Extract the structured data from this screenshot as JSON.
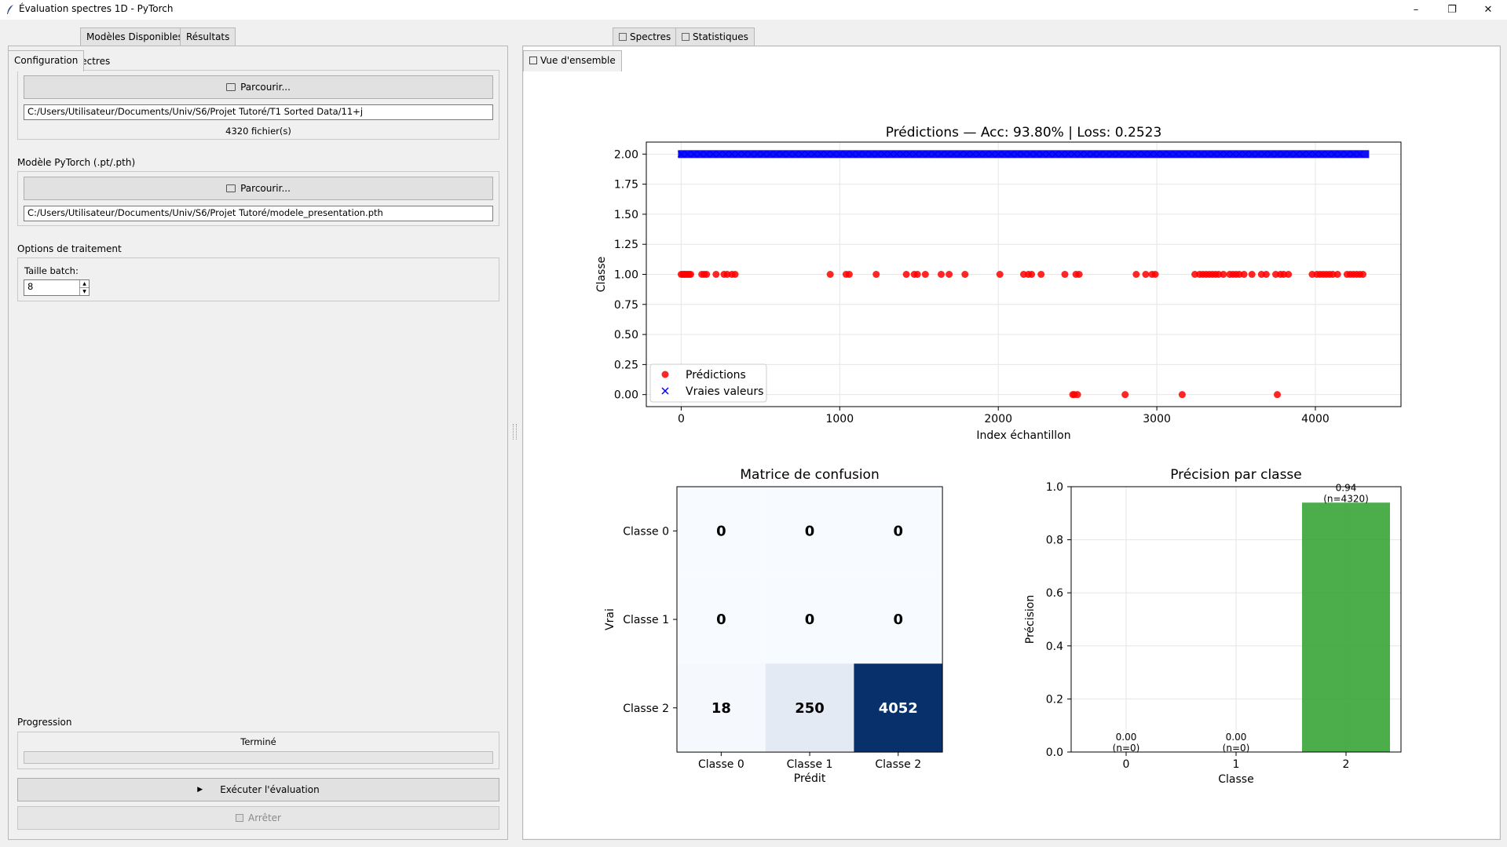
{
  "window": {
    "title": "Évaluation spectres 1D - PyTorch",
    "controls": [
      "–",
      "❐",
      "✕"
    ]
  },
  "left_tabs": [
    "Configuration",
    "Modèles Disponibles",
    "Résultats"
  ],
  "right_tabs": [
    "Vue d'ensemble",
    "Spectres",
    "Statistiques"
  ],
  "config": {
    "spectra_group": "Dossier de spectres",
    "spectra_browse": "Parcourir...",
    "spectra_path": "C:/Users/Utilisateur/Documents/Univ/S6/Projet Tutoré/T1 Sorted Data/11+j",
    "file_count": "4320 fichier(s)",
    "model_group": "Modèle PyTorch (.pt/.pth)",
    "model_browse": "Parcourir...",
    "model_path": "C:/Users/Utilisateur/Documents/Univ/S6/Projet Tutoré/modele_presentation.pth",
    "options_group": "Options de traitement",
    "batch_label": "Taille batch:",
    "batch_value": "8",
    "progress_group": "Progression",
    "progress_status": "Terminé",
    "progress_value": 0,
    "run_button": "Exécuter l'évaluation",
    "run_icon": "▶",
    "stop_button": "Arrêter"
  },
  "chart_data": [
    {
      "type": "scatter",
      "title": "Prédictions — Acc: 93.80% | Loss: 0.2523",
      "xlabel": "Index échantillon",
      "ylabel": "Classe",
      "xlim": [
        -220,
        4540
      ],
      "ylim": [
        -0.1,
        2.1
      ],
      "xticks": [
        "0",
        "1000",
        "2000",
        "3000",
        "4000"
      ],
      "xtick_values": [
        0,
        1000,
        2000,
        3000,
        4000
      ],
      "yticks": [
        "0.00",
        "0.25",
        "0.50",
        "0.75",
        "1.00",
        "1.25",
        "1.50",
        "1.75",
        "2.00"
      ],
      "ytick_values": [
        0,
        0.25,
        0.5,
        0.75,
        1,
        1.25,
        1.5,
        1.75,
        2
      ],
      "grid": true,
      "legend_position": "lower-left",
      "series": [
        {
          "name": "Prédictions",
          "color": "#ff0000",
          "marker": "circle",
          "points": [
            [
              0,
              1
            ],
            [
              10,
              1
            ],
            [
              20,
              1
            ],
            [
              30,
              1
            ],
            [
              40,
              1
            ],
            [
              50,
              1
            ],
            [
              60,
              1
            ],
            [
              130,
              1
            ],
            [
              145,
              1
            ],
            [
              160,
              1
            ],
            [
              220,
              1
            ],
            [
              270,
              1
            ],
            [
              290,
              1
            ],
            [
              320,
              1
            ],
            [
              340,
              1
            ],
            [
              940,
              1
            ],
            [
              1040,
              1
            ],
            [
              1060,
              1
            ],
            [
              1230,
              1
            ],
            [
              1420,
              1
            ],
            [
              1470,
              1
            ],
            [
              1490,
              1
            ],
            [
              1540,
              1
            ],
            [
              1640,
              1
            ],
            [
              1690,
              1
            ],
            [
              1790,
              1
            ],
            [
              2010,
              1
            ],
            [
              2160,
              1
            ],
            [
              2190,
              1
            ],
            [
              2210,
              1
            ],
            [
              2270,
              1
            ],
            [
              2420,
              1
            ],
            [
              2490,
              1
            ],
            [
              2510,
              1
            ],
            [
              2870,
              1
            ],
            [
              2930,
              1
            ],
            [
              2970,
              1
            ],
            [
              2990,
              1
            ],
            [
              3240,
              1
            ],
            [
              3270,
              1
            ],
            [
              3290,
              1
            ],
            [
              3310,
              1
            ],
            [
              3330,
              1
            ],
            [
              3350,
              1
            ],
            [
              3370,
              1
            ],
            [
              3390,
              1
            ],
            [
              3420,
              1
            ],
            [
              3460,
              1
            ],
            [
              3480,
              1
            ],
            [
              3500,
              1
            ],
            [
              3520,
              1
            ],
            [
              3550,
              1
            ],
            [
              3600,
              1
            ],
            [
              3660,
              1
            ],
            [
              3690,
              1
            ],
            [
              3750,
              1
            ],
            [
              3780,
              1
            ],
            [
              3800,
              1
            ],
            [
              3830,
              1
            ],
            [
              3980,
              1
            ],
            [
              4010,
              1
            ],
            [
              4030,
              1
            ],
            [
              4050,
              1
            ],
            [
              4070,
              1
            ],
            [
              4090,
              1
            ],
            [
              4110,
              1
            ],
            [
              4140,
              1
            ],
            [
              4200,
              1
            ],
            [
              4220,
              1
            ],
            [
              4240,
              1
            ],
            [
              4260,
              1
            ],
            [
              4280,
              1
            ],
            [
              4300,
              1
            ],
            [
              2470,
              0
            ],
            [
              2480,
              0
            ],
            [
              2500,
              0
            ],
            [
              2800,
              0
            ],
            [
              3160,
              0
            ],
            [
              3760,
              0
            ]
          ]
        },
        {
          "name": "Vraies valeurs",
          "color": "#0000ff",
          "marker": "x",
          "x_range": [
            0,
            4319
          ],
          "y": 2
        }
      ]
    },
    {
      "type": "heatmap",
      "title": "Matrice de confusion",
      "xlabel": "Prédit",
      "ylabel": "Vrai",
      "x_categories": [
        "Classe 0",
        "Classe 1",
        "Classe 2"
      ],
      "y_categories": [
        "Classe 0",
        "Classe 1",
        "Classe 2"
      ],
      "values": [
        [
          0,
          0,
          0
        ],
        [
          0,
          0,
          0
        ],
        [
          18,
          250,
          4052
        ]
      ],
      "colormap": "Blues"
    },
    {
      "type": "bar",
      "title": "Précision par classe",
      "xlabel": "Classe",
      "ylabel": "Précision",
      "categories": [
        "0",
        "1",
        "2"
      ],
      "values": [
        0.0,
        0.0,
        0.94
      ],
      "value_labels": [
        "0.00",
        "0.00",
        "0.94"
      ],
      "count_labels": [
        "(n=0)",
        "(n=0)",
        "(n=4320)"
      ],
      "ylim": [
        0,
        1.0
      ],
      "yticks": [
        "0.0",
        "0.2",
        "0.4",
        "0.6",
        "0.8",
        "1.0"
      ],
      "ytick_values": [
        0,
        0.2,
        0.4,
        0.6,
        0.8,
        1.0
      ],
      "color": "#2ca02c",
      "grid": true
    }
  ]
}
